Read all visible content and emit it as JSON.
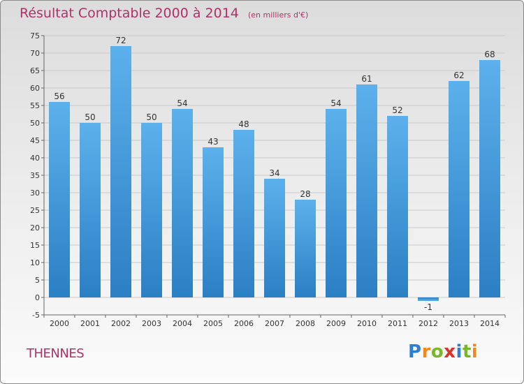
{
  "title": "Résultat Comptable 2000 à 2014",
  "unit": "(en milliers d'€)",
  "commune": "THENNES",
  "brand": {
    "letters": [
      "P",
      "r",
      "o",
      "x",
      "i",
      "t",
      "i"
    ],
    "colors": [
      "#2f7fd0",
      "#ef8a1a",
      "#7ab62a",
      "#d9322a",
      "#2f7fd0",
      "#7ab62a",
      "#ef8a1a"
    ]
  },
  "chart_data": {
    "type": "bar",
    "title": "Résultat Comptable 2000 à 2014",
    "xlabel": "",
    "ylabel": "",
    "categories": [
      "2000",
      "2001",
      "2002",
      "2003",
      "2004",
      "2005",
      "2006",
      "2007",
      "2008",
      "2009",
      "2010",
      "2011",
      "2012",
      "2013",
      "2014"
    ],
    "values": [
      56,
      50,
      72,
      50,
      54,
      43,
      48,
      34,
      28,
      54,
      61,
      52,
      -1,
      62,
      68
    ],
    "ylim": [
      -5,
      75
    ],
    "yticks": [
      -5,
      0,
      5,
      10,
      15,
      20,
      25,
      30,
      35,
      40,
      45,
      50,
      55,
      60,
      65,
      70,
      75
    ],
    "grid": true,
    "bar_color": "#4ea3e2"
  }
}
